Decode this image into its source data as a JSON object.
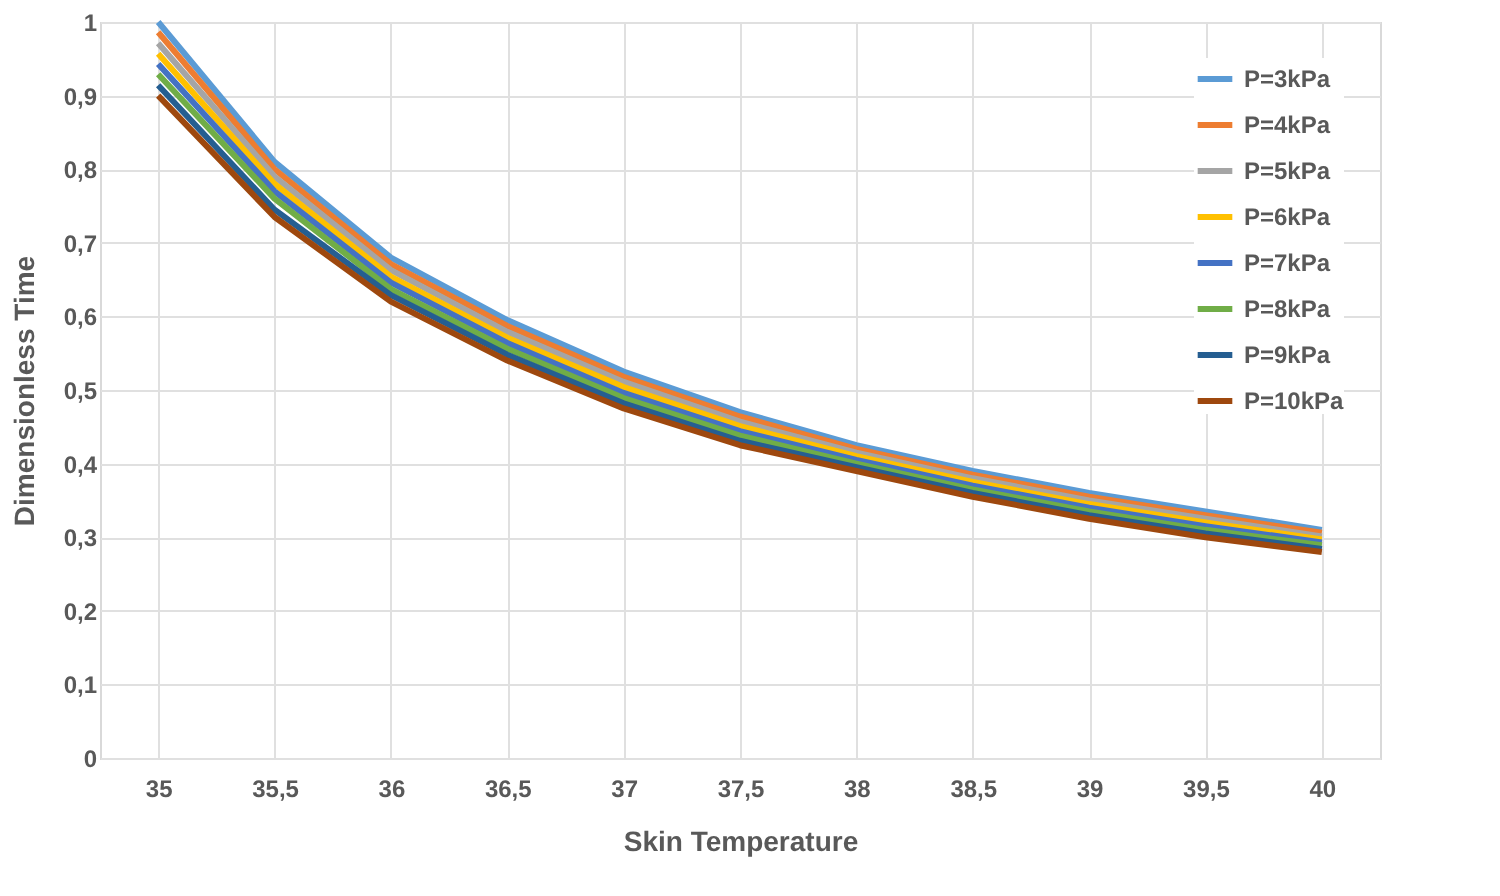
{
  "chart_data": {
    "type": "line",
    "xlabel": "Skin Temperature",
    "ylabel": "Dimensionless Time",
    "categories": [
      "35",
      "35,5",
      "36",
      "36,5",
      "37",
      "37,5",
      "38",
      "38,5",
      "39",
      "39,5",
      "40"
    ],
    "ylim": [
      0,
      1
    ],
    "yticks": [
      0,
      {
        "value": 0.1,
        "label": "0,1"
      },
      {
        "value": 0.2,
        "label": "0,2"
      },
      {
        "value": 0.3,
        "label": "0,3"
      },
      {
        "value": 0.4,
        "label": "0,4"
      },
      {
        "value": 0.5,
        "label": "0,5"
      },
      {
        "value": 0.6,
        "label": "0,6"
      },
      {
        "value": 0.7,
        "label": "0,7"
      },
      {
        "value": 0.8,
        "label": "0,8"
      },
      {
        "value": 0.9,
        "label": "0,9"
      },
      1
    ],
    "grid": true,
    "legend": "top right",
    "series": [
      {
        "name": "P=3kPa",
        "color": "#5b9bd5",
        "values": [
          1.0,
          0.81,
          0.68,
          0.595,
          0.525,
          0.47,
          0.425,
          0.39,
          0.36,
          0.335,
          0.31
        ]
      },
      {
        "name": "P=4kPa",
        "color": "#ed7d31",
        "values": [
          0.986,
          0.8,
          0.671,
          0.587,
          0.518,
          0.464,
          0.42,
          0.385,
          0.355,
          0.33,
          0.306
        ]
      },
      {
        "name": "P=5kPa",
        "color": "#a5a5a5",
        "values": [
          0.971,
          0.79,
          0.663,
          0.579,
          0.511,
          0.457,
          0.415,
          0.38,
          0.35,
          0.325,
          0.301
        ]
      },
      {
        "name": "P=6kPa",
        "color": "#ffc000",
        "values": [
          0.957,
          0.78,
          0.654,
          0.571,
          0.504,
          0.451,
          0.41,
          0.375,
          0.345,
          0.32,
          0.297
        ]
      },
      {
        "name": "P=7kPa",
        "color": "#4472c4",
        "values": [
          0.943,
          0.77,
          0.646,
          0.564,
          0.496,
          0.444,
          0.405,
          0.37,
          0.34,
          0.315,
          0.293
        ]
      },
      {
        "name": "P=8kPa",
        "color": "#70ad47",
        "values": [
          0.929,
          0.76,
          0.637,
          0.556,
          0.489,
          0.438,
          0.4,
          0.365,
          0.335,
          0.31,
          0.289
        ]
      },
      {
        "name": "P=9kPa",
        "color": "#255e91",
        "values": [
          0.914,
          0.745,
          0.629,
          0.548,
          0.482,
          0.431,
          0.395,
          0.36,
          0.33,
          0.305,
          0.284
        ]
      },
      {
        "name": "P=10kPa",
        "color": "#9e480e",
        "values": [
          0.9,
          0.735,
          0.62,
          0.54,
          0.475,
          0.425,
          0.39,
          0.355,
          0.325,
          0.3,
          0.28
        ]
      }
    ]
  }
}
